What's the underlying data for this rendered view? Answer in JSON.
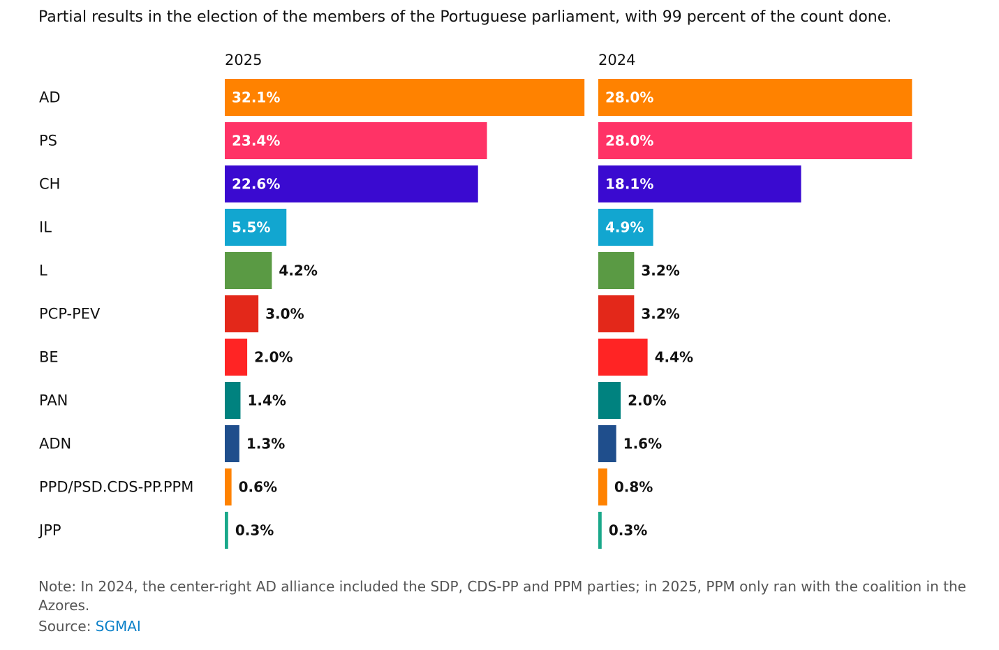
{
  "title": "Partial results in the election of the members of the Portuguese parliament, with 99 percent of the count done.",
  "note": "Note: In 2024, the center-right AD alliance included the SDP, CDS-PP and PPM parties; in 2025, PPM only ran with the coalition in the Azores.",
  "source_label": "Source:",
  "source_link": "SGMAI",
  "chart_data": {
    "type": "bar",
    "orientation": "horizontal",
    "categories": [
      "AD",
      "PS",
      "CH",
      "IL",
      "L",
      "PCP-PEV",
      "BE",
      "PAN",
      "ADN",
      "PPD/PSD.CDS-PP.PPM",
      "JPP"
    ],
    "colors": [
      "#ff8200",
      "#ff3366",
      "#3a0ad0",
      "#12a6d0",
      "#5a9a44",
      "#e3281a",
      "#ff2424",
      "#00827f",
      "#1f4e8c",
      "#ff8200",
      "#1aa88a"
    ],
    "series": [
      {
        "name": "2025",
        "values": [
          32.1,
          23.4,
          22.6,
          5.5,
          4.2,
          3.0,
          2.0,
          1.4,
          1.3,
          0.6,
          0.3
        ],
        "labels": [
          "32.1%",
          "23.4%",
          "22.6%",
          "5.5%",
          "4.2%",
          "3.0%",
          "2.0%",
          "1.4%",
          "1.3%",
          "0.6%",
          "0.3%"
        ]
      },
      {
        "name": "2024",
        "values": [
          28.0,
          28.0,
          18.1,
          4.9,
          3.2,
          3.2,
          4.4,
          2.0,
          1.6,
          0.8,
          0.3
        ],
        "labels": [
          "28.0%",
          "28.0%",
          "18.1%",
          "4.9%",
          "3.2%",
          "3.2%",
          "4.4%",
          "2.0%",
          "1.6%",
          "0.8%",
          "0.3%"
        ]
      }
    ]
  }
}
